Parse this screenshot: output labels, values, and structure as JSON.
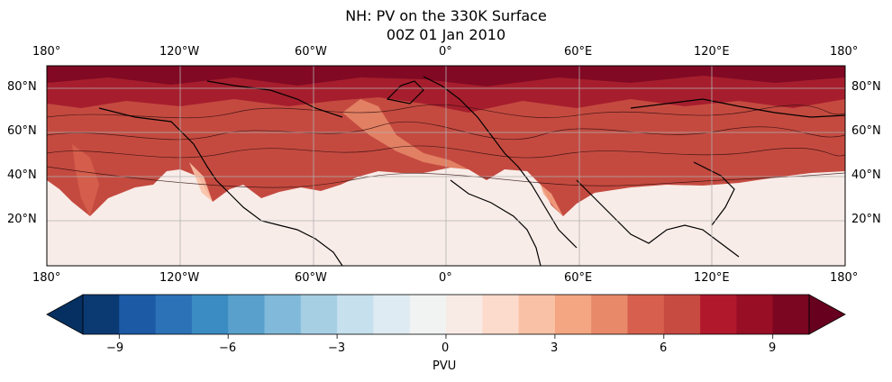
{
  "title": "NH: PV on the 330K Surface",
  "subtitle": "00Z 01 Jan 2010",
  "map": {
    "projection": "PlateCarree (0–180°, 0–90°N)",
    "lon_labels": [
      "180°",
      "120°W",
      "60°W",
      "0°",
      "60°E",
      "120°E",
      "180°"
    ],
    "lat_labels": [
      "80°N",
      "60°N",
      "40°N",
      "20°N"
    ],
    "gridlines": true,
    "coastlines": true,
    "fill_palette": "RdBu_r"
  },
  "colorbar": {
    "label": "PVU",
    "tick_labels": [
      "−9",
      "−6",
      "−3",
      "0",
      "3",
      "6",
      "9"
    ],
    "ticks": [
      -9,
      -6,
      -3,
      0,
      3,
      6,
      9
    ],
    "range": [
      -10,
      10
    ],
    "extend": "both",
    "colors": [
      "#053061",
      "#0b3a73",
      "#1c5aa6",
      "#2c72b6",
      "#3b8cc2",
      "#59a1cc",
      "#80b9d9",
      "#a7cfe4",
      "#c6e0ed",
      "#deebf2",
      "#f1f3f3",
      "#f8ebe6",
      "#fddbcc",
      "#f9c2a6",
      "#f4a582",
      "#e8896a",
      "#d6604d",
      "#c84b42",
      "#b2182b",
      "#980e24",
      "#7a0622",
      "#67001f"
    ]
  }
}
